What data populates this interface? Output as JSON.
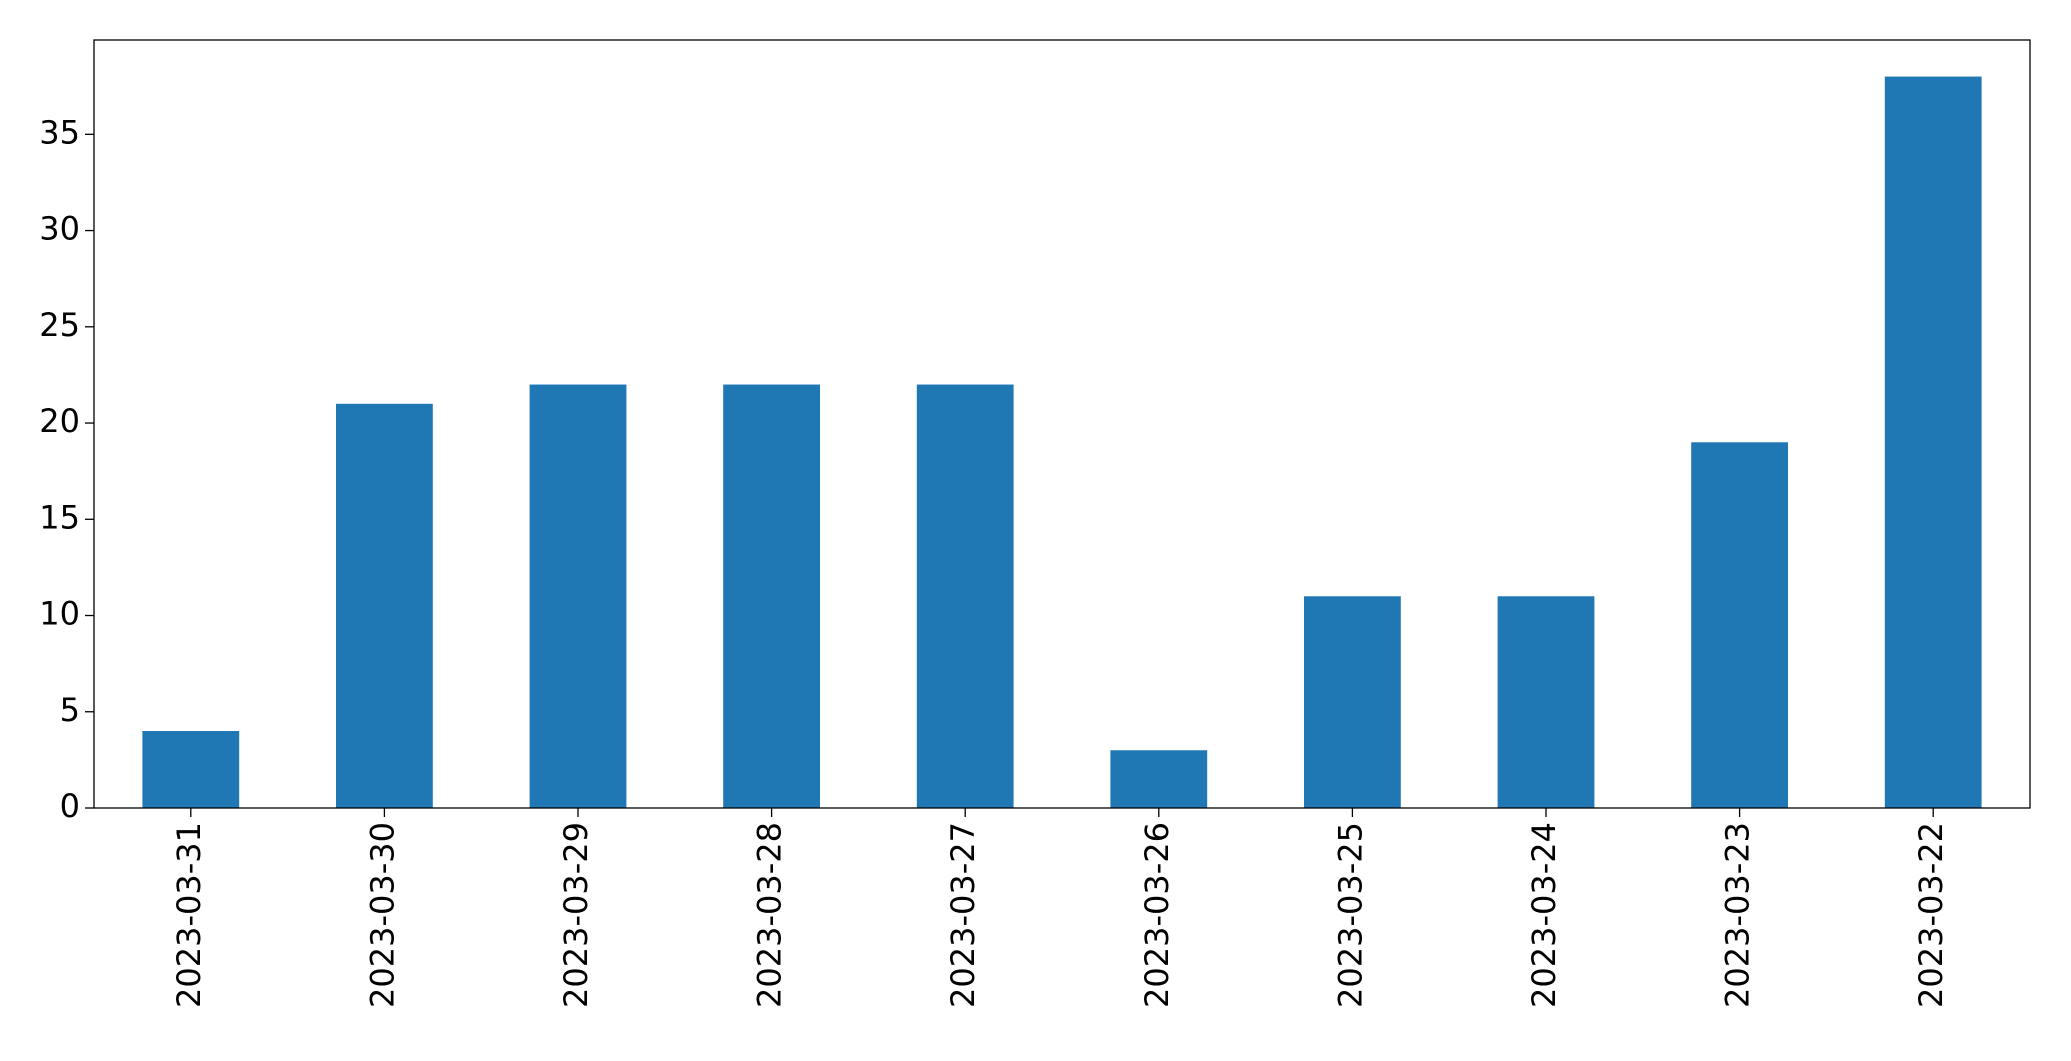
{
  "chart_data": {
    "type": "bar",
    "categories": [
      "2023-03-31",
      "2023-03-30",
      "2023-03-29",
      "2023-03-28",
      "2023-03-27",
      "2023-03-26",
      "2023-03-25",
      "2023-03-24",
      "2023-03-23",
      "2023-03-22"
    ],
    "values": [
      4,
      21,
      22,
      22,
      22,
      3,
      11,
      11,
      19,
      38
    ],
    "color": "#1f77b4",
    "ylim": [
      0,
      39.9
    ],
    "yticks": [
      0,
      5,
      10,
      15,
      20,
      25,
      30,
      35
    ],
    "grid": false
  }
}
